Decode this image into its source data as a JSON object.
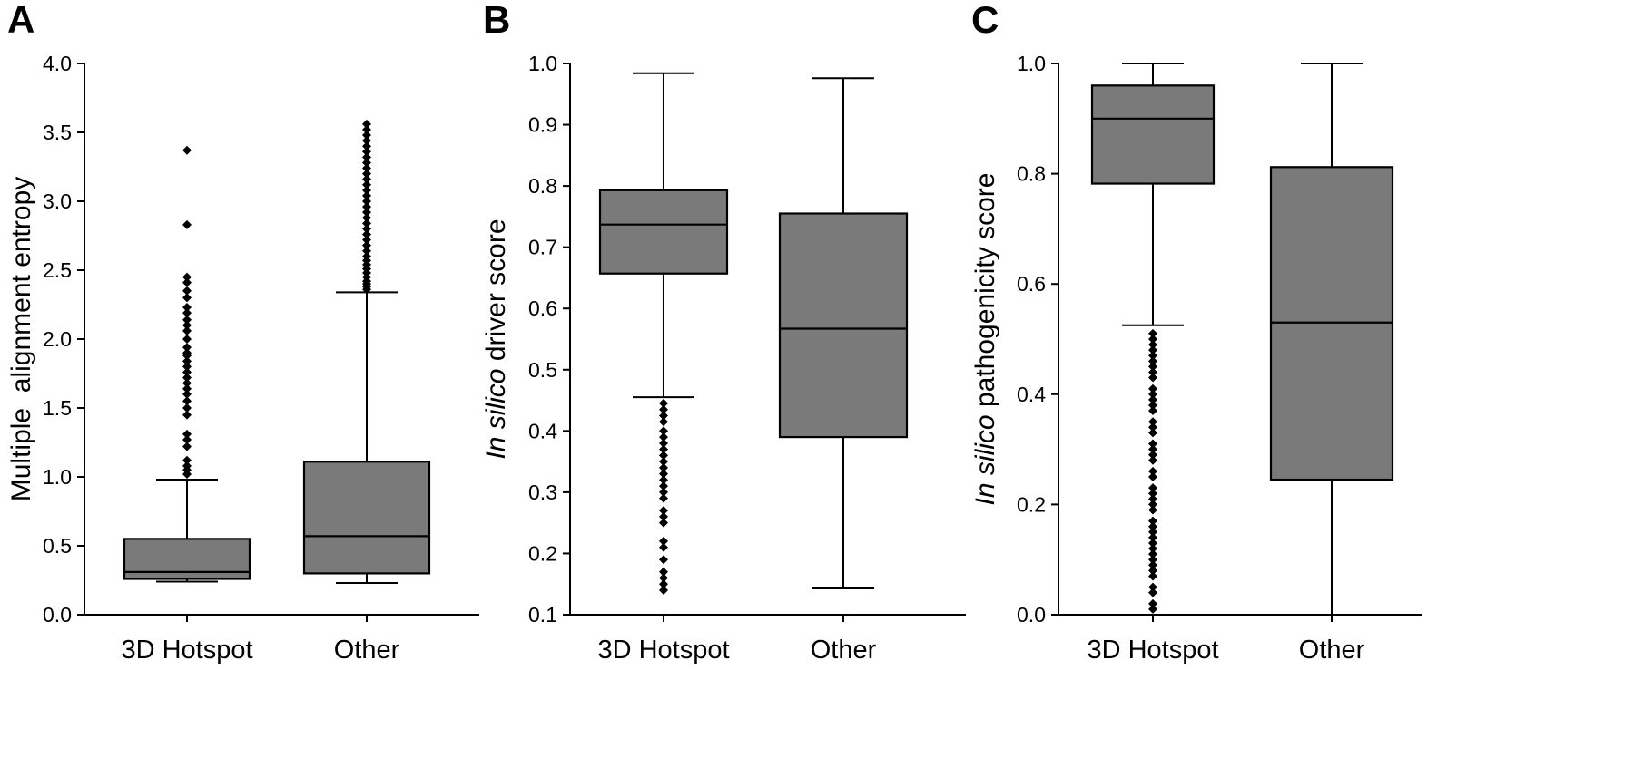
{
  "chart_data": [
    {
      "type": "box",
      "panel": "A",
      "ylabel": "Multiple  alignment entropy",
      "ylim": [
        0.0,
        4.0
      ],
      "yticks": [
        "0.0",
        "0.5",
        "1.0",
        "1.5",
        "2.0",
        "2.5",
        "3.0",
        "3.5",
        "4.0"
      ],
      "categories": [
        "3D Hotspot",
        "Other"
      ],
      "boxes": [
        {
          "category": "3D Hotspot",
          "whisker_low": 0.24,
          "q1": 0.26,
          "median": 0.31,
          "q3": 0.55,
          "whisker_high": 0.98,
          "outliers": [
            1.02,
            1.05,
            1.08,
            1.12,
            1.22,
            1.27,
            1.31,
            1.45,
            1.5,
            1.55,
            1.6,
            1.64,
            1.68,
            1.72,
            1.76,
            1.8,
            1.84,
            1.88,
            1.9,
            1.94,
            2.0,
            2.06,
            2.1,
            2.14,
            2.19,
            2.23,
            2.3,
            2.35,
            2.41,
            2.45,
            2.83,
            3.37
          ]
        },
        {
          "category": "Other",
          "whisker_low": 0.23,
          "q1": 0.3,
          "median": 0.57,
          "q3": 1.11,
          "whisker_high": 2.34,
          "outliers": [
            2.36,
            2.38,
            2.4,
            2.42,
            2.45,
            2.48,
            2.51,
            2.54,
            2.57,
            2.6,
            2.64,
            2.68,
            2.72,
            2.76,
            2.8,
            2.84,
            2.88,
            2.92,
            2.96,
            3.0,
            3.04,
            3.08,
            3.12,
            3.16,
            3.2,
            3.24,
            3.28,
            3.32,
            3.36,
            3.4,
            3.44,
            3.48,
            3.52,
            3.56
          ]
        }
      ]
    },
    {
      "type": "box",
      "panel": "B",
      "ylabel_italic": "In silico",
      "ylabel_rest": " driver score",
      "ylim": [
        0.1,
        1.0
      ],
      "yticks": [
        "0.1",
        "0.2",
        "0.3",
        "0.4",
        "0.5",
        "0.6",
        "0.7",
        "0.8",
        "0.9",
        "1.0"
      ],
      "categories": [
        "3D Hotspot",
        "Other"
      ],
      "boxes": [
        {
          "category": "3D Hotspot",
          "whisker_low": 0.455,
          "q1": 0.657,
          "median": 0.737,
          "q3": 0.793,
          "whisker_high": 0.984,
          "outliers": [
            0.445,
            0.435,
            0.425,
            0.415,
            0.4,
            0.39,
            0.38,
            0.37,
            0.36,
            0.35,
            0.34,
            0.33,
            0.32,
            0.31,
            0.3,
            0.29,
            0.27,
            0.26,
            0.25,
            0.22,
            0.21,
            0.19,
            0.17,
            0.16,
            0.15,
            0.14
          ]
        },
        {
          "category": "Other",
          "whisker_low": 0.143,
          "q1": 0.39,
          "median": 0.567,
          "q3": 0.755,
          "whisker_high": 0.976,
          "outliers": []
        }
      ]
    },
    {
      "type": "box",
      "panel": "C",
      "ylabel_italic": "In silico",
      "ylabel_rest": " pathogenicity score",
      "ylim": [
        0.0,
        1.0
      ],
      "yticks": [
        "0.0",
        "0.2",
        "0.4",
        "0.6",
        "0.8",
        "1.0"
      ],
      "categories": [
        "3D Hotspot",
        "Other"
      ],
      "boxes": [
        {
          "category": "3D Hotspot",
          "whisker_low": 0.525,
          "q1": 0.782,
          "median": 0.9,
          "q3": 0.96,
          "whisker_high": 1.0,
          "outliers": [
            0.51,
            0.5,
            0.49,
            0.48,
            0.47,
            0.46,
            0.45,
            0.44,
            0.43,
            0.41,
            0.4,
            0.39,
            0.38,
            0.37,
            0.35,
            0.34,
            0.33,
            0.31,
            0.3,
            0.29,
            0.28,
            0.26,
            0.25,
            0.23,
            0.22,
            0.21,
            0.2,
            0.19,
            0.17,
            0.16,
            0.15,
            0.14,
            0.13,
            0.12,
            0.11,
            0.1,
            0.09,
            0.08,
            0.07,
            0.05,
            0.04,
            0.02,
            0.01
          ]
        },
        {
          "category": "Other",
          "whisker_low": 0.0,
          "q1": 0.245,
          "median": 0.53,
          "q3": 0.812,
          "whisker_high": 1.0,
          "outliers": []
        }
      ]
    }
  ]
}
